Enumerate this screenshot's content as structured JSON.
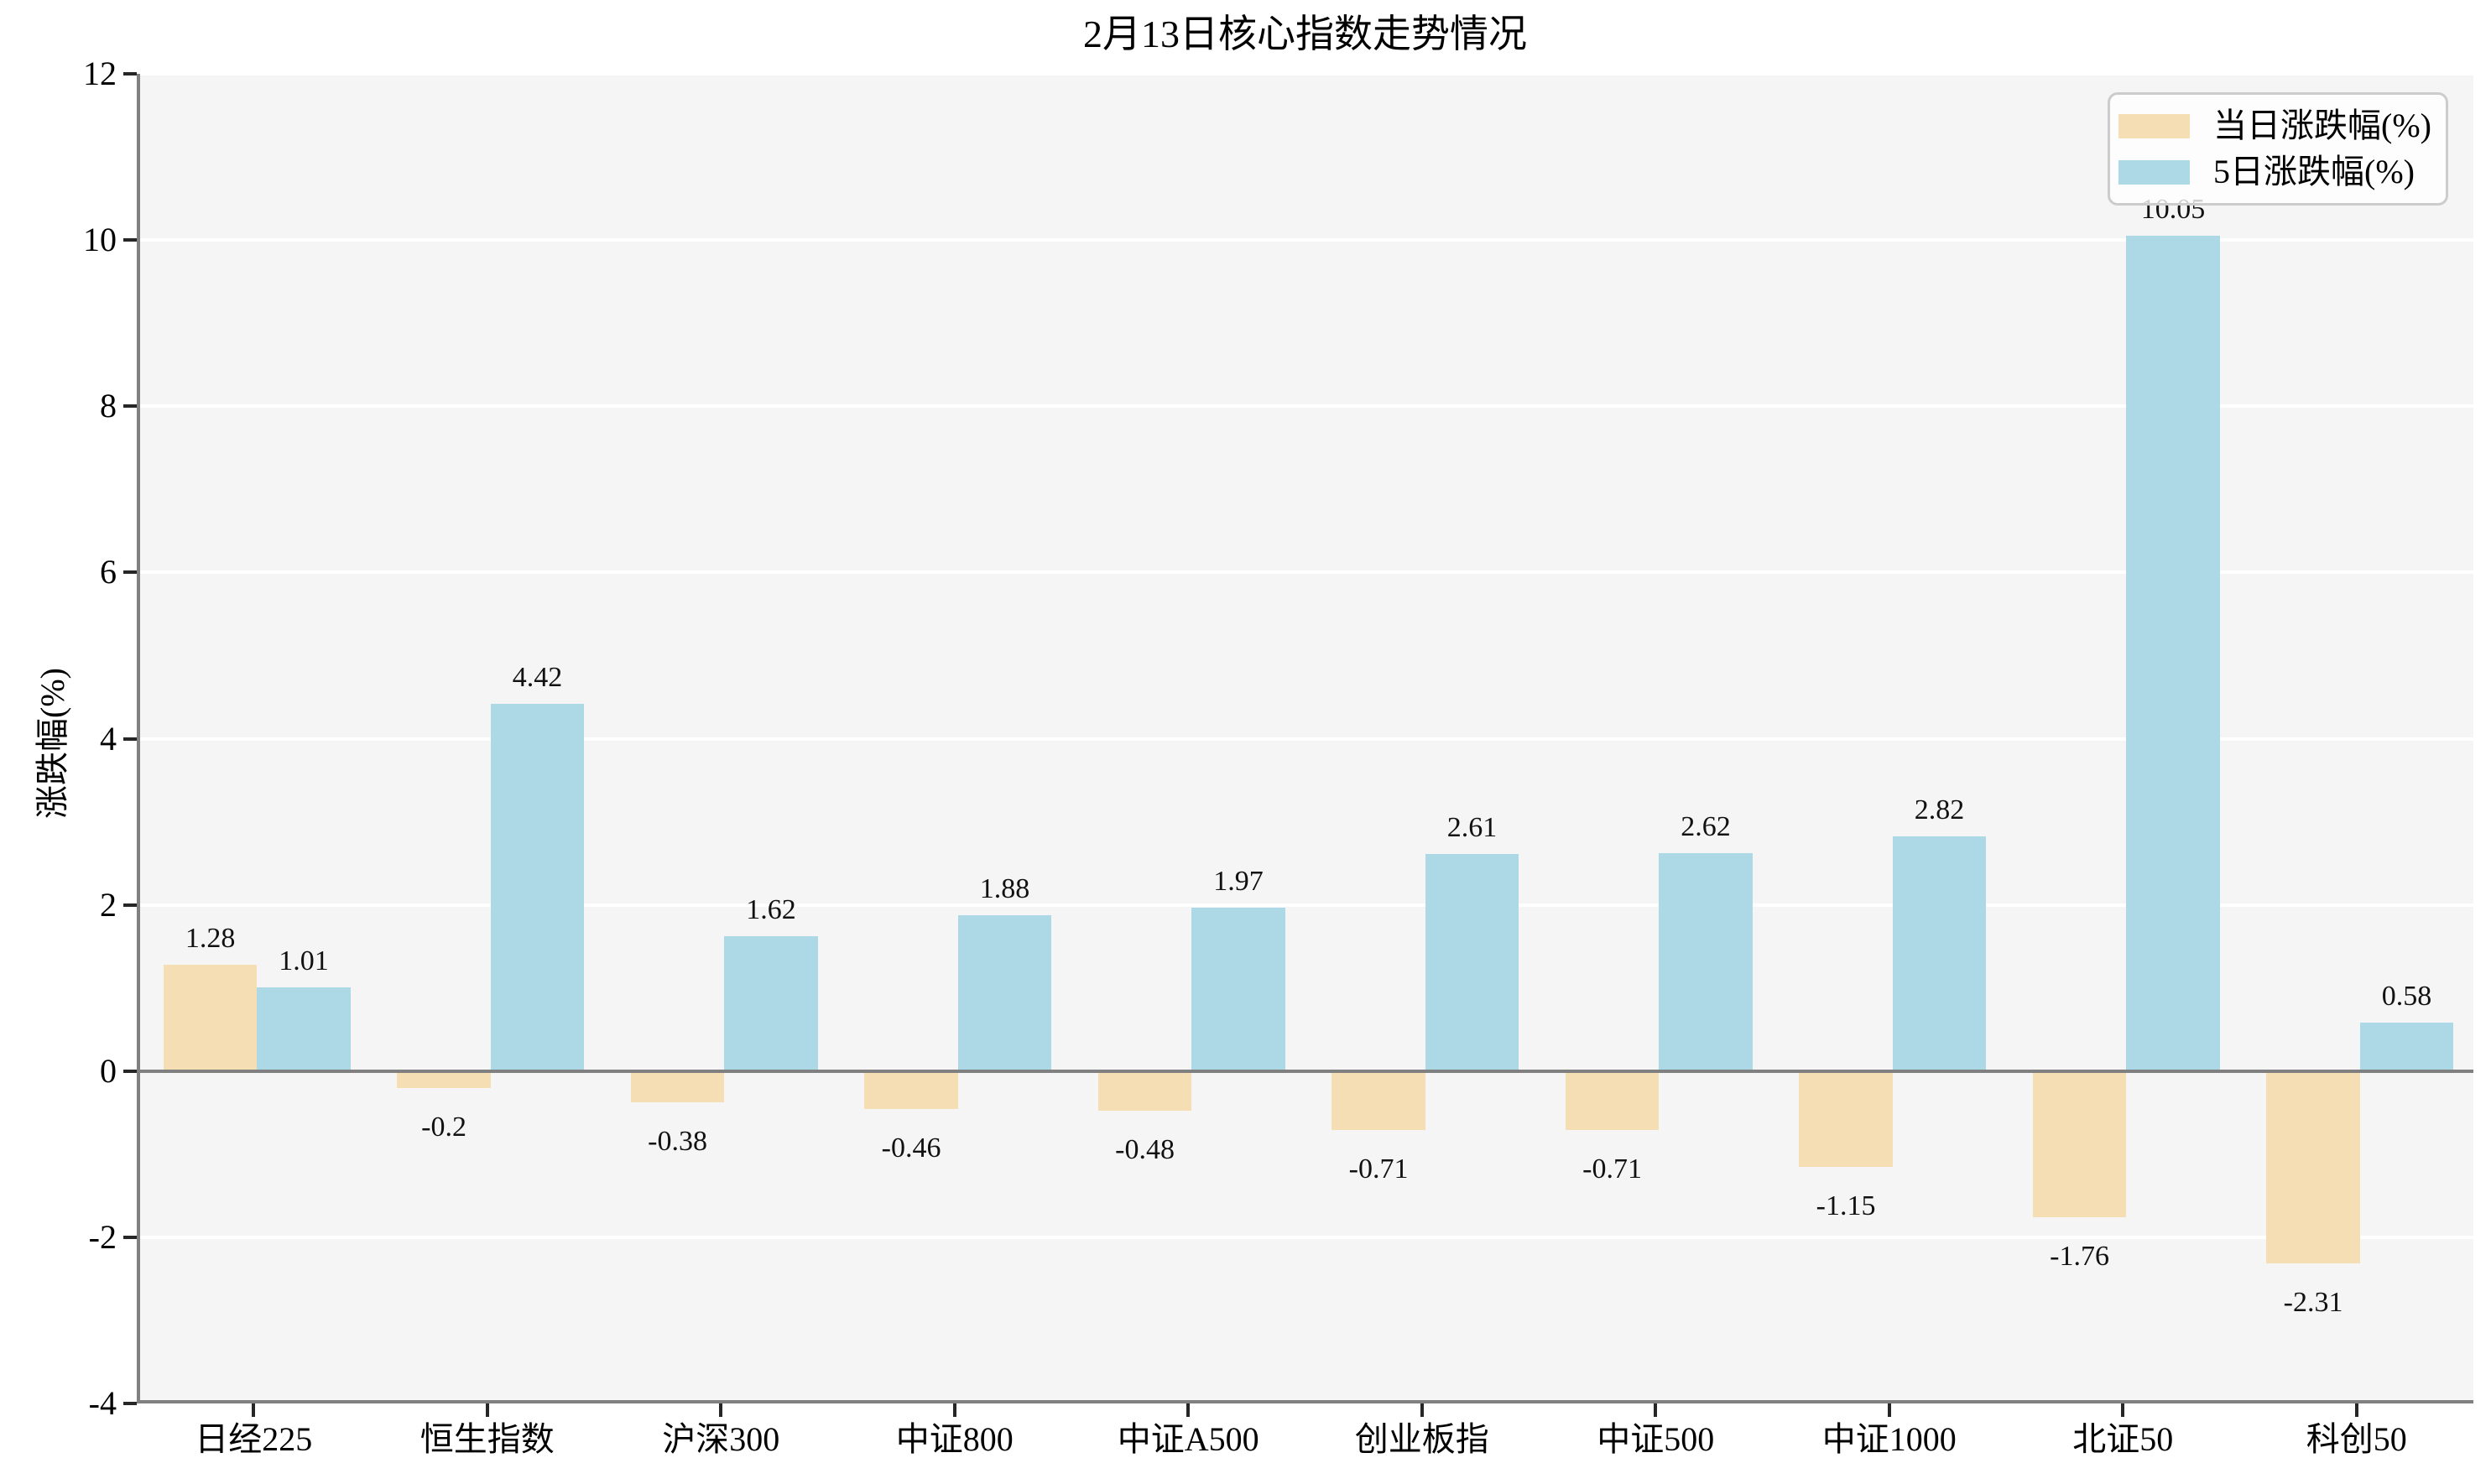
{
  "title": "2月13日核心指数走势情况",
  "ylabel": "涨跌幅(%)",
  "colors": {
    "daily_bar": "#F5DEB3",
    "five_day_bar": "#ADD8E6",
    "plot_background": "#F5F5F5",
    "gridline": "#FFFFFF",
    "axis_line": "#808080",
    "tick_mark": "#262626",
    "legend_border": "#CCCCCC"
  },
  "legend": {
    "items": [
      {
        "label": "当日涨跌幅(%)",
        "color_key": "daily_bar"
      },
      {
        "label": "5日涨跌幅(%)",
        "color_key": "five_day_bar"
      }
    ]
  },
  "chart_data": {
    "type": "bar",
    "title": "2月13日核心指数走势情况",
    "xlabel": "",
    "ylabel": "涨跌幅(%)",
    "categories": [
      "日经225",
      "恒生指数",
      "沪深300",
      "中证800",
      "中证A500",
      "创业板指",
      "中证500",
      "中证1000",
      "北证50",
      "科创50"
    ],
    "series": [
      {
        "name": "当日涨跌幅(%)",
        "values": [
          1.28,
          -0.2,
          -0.38,
          -0.46,
          -0.48,
          -0.71,
          -0.71,
          -1.15,
          -1.76,
          -2.31
        ]
      },
      {
        "name": "5日涨跌幅(%)",
        "values": [
          1.01,
          4.42,
          1.62,
          1.88,
          1.97,
          2.61,
          2.62,
          2.82,
          10.05,
          0.58
        ]
      }
    ],
    "ylim": [
      -4,
      12
    ],
    "yticks": [
      -4,
      -2,
      0,
      2,
      4,
      6,
      8,
      10,
      12
    ],
    "grid": true,
    "legend_position": "upper right"
  }
}
